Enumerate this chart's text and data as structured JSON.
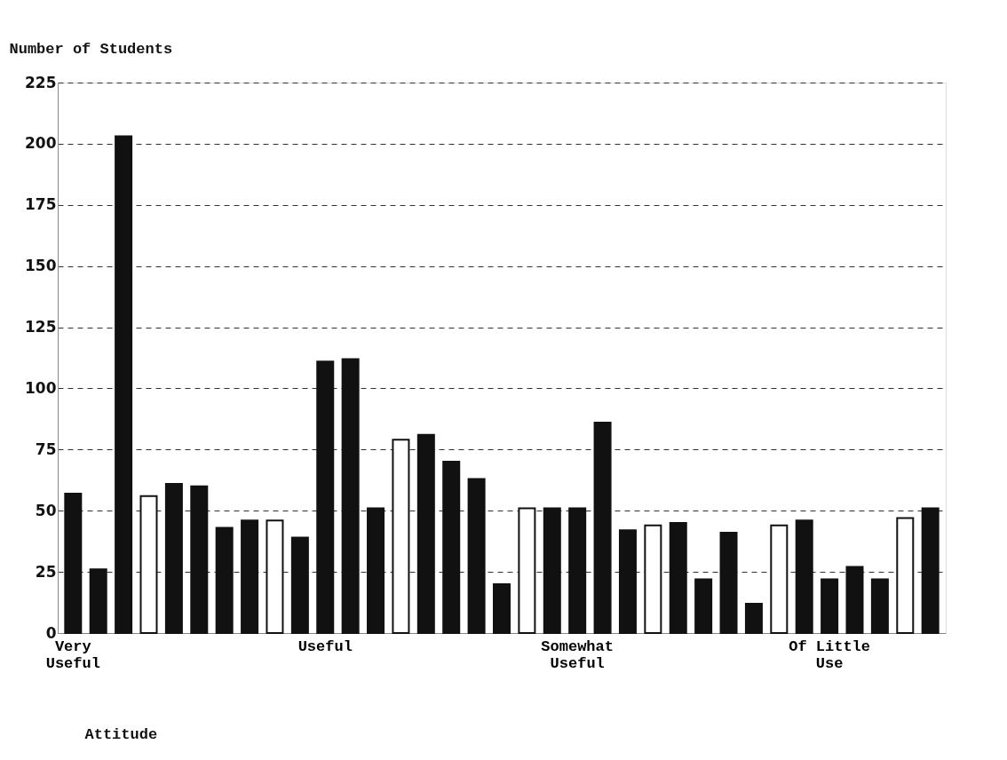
{
  "chart_data": {
    "type": "bar",
    "xlabel": "Attitude",
    "ylabel": "Number of Students",
    "categories": [
      "Very Useful",
      null,
      null,
      null,
      null,
      null,
      null,
      null,
      null,
      null,
      "Useful",
      null,
      null,
      null,
      null,
      null,
      null,
      null,
      null,
      null,
      "Somewhat Useful",
      null,
      null,
      null,
      null,
      null,
      null,
      null,
      null,
      null,
      "Of Little Use",
      null,
      null,
      null,
      null
    ],
    "values": [
      57,
      26,
      203,
      56,
      61,
      60,
      43,
      46,
      46,
      39,
      111,
      112,
      51,
      79,
      81,
      70,
      63,
      20,
      51,
      51,
      51,
      86,
      42,
      44,
      45,
      22,
      41,
      12,
      44,
      46,
      22,
      27,
      22,
      47,
      51
    ],
    "colors": [
      "#111111",
      "#111111",
      "#111111",
      "#ffffff",
      "#111111",
      "#111111",
      "#111111",
      "#111111",
      "#ffffff",
      "#111111",
      "#111111",
      "#111111",
      "#111111",
      "#ffffff",
      "#111111",
      "#111111",
      "#111111",
      "#111111",
      "#ffffff",
      "#111111",
      "#111111",
      "#111111",
      "#111111",
      "#ffffff",
      "#111111",
      "#111111",
      "#111111",
      "#111111",
      "#ffffff",
      "#111111",
      "#111111",
      "#111111",
      "#111111",
      "#ffffff",
      "#111111"
    ],
    "ylim": [
      0,
      225
    ],
    "yticks": [
      0,
      25,
      50,
      75,
      100,
      125,
      150,
      175,
      200,
      225
    ],
    "grid": "y"
  }
}
